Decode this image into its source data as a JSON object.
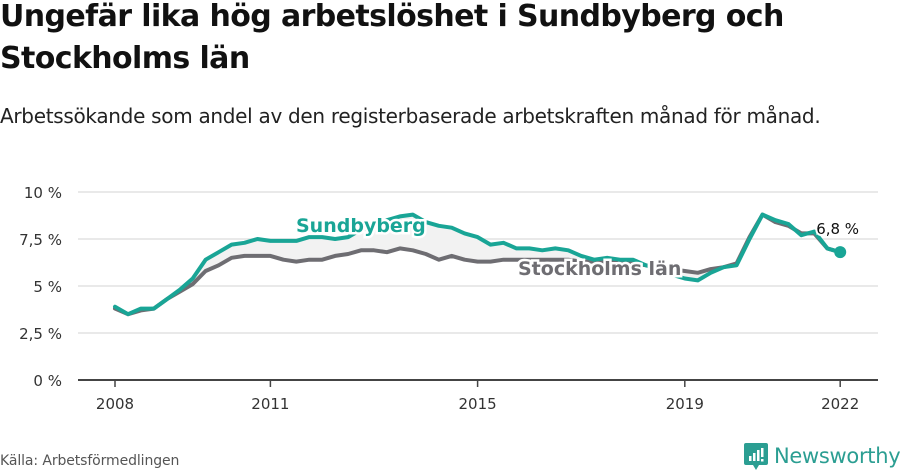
{
  "header": {
    "title": "Ungefär lika hög arbetslöshet i Sundbyberg och Stockholms län",
    "subtitle": "Arbetssökande som andel av den registerbaserade arbetskraften månad för månad."
  },
  "footer": {
    "source": "Källa: Arbetsförmedlingen",
    "brand": "Newsworthy",
    "brand_icon": "bar-chart-speech-bubble-icon"
  },
  "colors": {
    "sundbyberg": "#19a596",
    "stockholm": "#6e6d72",
    "grid": "#e2e2e2",
    "axis": "#444444",
    "fill": "#f3f3f3"
  },
  "chart_data": {
    "type": "line",
    "title": "Ungefär lika hög arbetslöshet i Sundbyberg och Stockholms län",
    "subtitle": "Arbetssökande som andel av den registerbaserade arbetskraften månad för månad.",
    "xlabel": "",
    "ylabel": "",
    "x_ticks": [
      "2008",
      "2011",
      "2015",
      "2019",
      "2022"
    ],
    "y_ticks": [
      "0 %",
      "2,5 %",
      "5 %",
      "7,5 %",
      "10 %"
    ],
    "ylim": [
      0,
      10
    ],
    "xlim": [
      "2007-11",
      "2022-09"
    ],
    "grid": true,
    "legend": "direct labels on lines",
    "annotations": [
      {
        "text": "6,8 %",
        "x": "2022-01",
        "y": 6.8
      }
    ],
    "x": [
      "2008-01",
      "2008-04",
      "2008-07",
      "2008-10",
      "2009-01",
      "2009-04",
      "2009-07",
      "2009-10",
      "2010-01",
      "2010-04",
      "2010-07",
      "2010-10",
      "2011-01",
      "2011-04",
      "2011-07",
      "2011-10",
      "2012-01",
      "2012-04",
      "2012-07",
      "2012-10",
      "2013-01",
      "2013-04",
      "2013-07",
      "2013-10",
      "2014-01",
      "2014-04",
      "2014-07",
      "2014-10",
      "2015-01",
      "2015-04",
      "2015-07",
      "2015-10",
      "2016-01",
      "2016-04",
      "2016-07",
      "2016-10",
      "2017-01",
      "2017-04",
      "2017-07",
      "2017-10",
      "2018-01",
      "2018-04",
      "2018-07",
      "2018-10",
      "2019-01",
      "2019-04",
      "2019-07",
      "2019-10",
      "2020-01",
      "2020-04",
      "2020-07",
      "2020-10",
      "2021-01",
      "2021-04",
      "2021-07",
      "2021-10",
      "2022-01"
    ],
    "series": [
      {
        "name": "Sundbyberg",
        "color": "#19a596",
        "values": [
          3.9,
          3.5,
          3.8,
          3.8,
          4.3,
          4.8,
          5.4,
          6.4,
          6.8,
          7.2,
          7.3,
          7.5,
          7.4,
          7.4,
          7.4,
          7.6,
          7.6,
          7.5,
          7.6,
          8.0,
          8.2,
          8.5,
          8.7,
          8.8,
          8.4,
          8.2,
          8.1,
          7.8,
          7.6,
          7.2,
          7.3,
          7.0,
          7.0,
          6.9,
          7.0,
          6.9,
          6.6,
          6.4,
          6.5,
          6.4,
          6.4,
          6.1,
          5.9,
          5.6,
          5.4,
          5.3,
          5.7,
          6.0,
          6.1,
          7.5,
          8.8,
          8.5,
          8.3,
          7.7,
          7.9,
          7.0,
          6.8
        ]
      },
      {
        "name": "Stockholms län",
        "color": "#6e6d72",
        "values": [
          3.8,
          3.5,
          3.7,
          3.8,
          4.3,
          4.7,
          5.1,
          5.8,
          6.1,
          6.5,
          6.6,
          6.6,
          6.6,
          6.4,
          6.3,
          6.4,
          6.4,
          6.6,
          6.7,
          6.9,
          6.9,
          6.8,
          7.0,
          6.9,
          6.7,
          6.4,
          6.6,
          6.4,
          6.3,
          6.3,
          6.4,
          6.4,
          6.4,
          6.4,
          6.4,
          6.4,
          6.3,
          6.3,
          6.3,
          6.2,
          6.2,
          6.1,
          6.0,
          5.9,
          5.8,
          5.7,
          5.9,
          6.0,
          6.2,
          7.6,
          8.8,
          8.4,
          8.2,
          7.8,
          7.8,
          7.0,
          6.8
        ]
      }
    ]
  }
}
